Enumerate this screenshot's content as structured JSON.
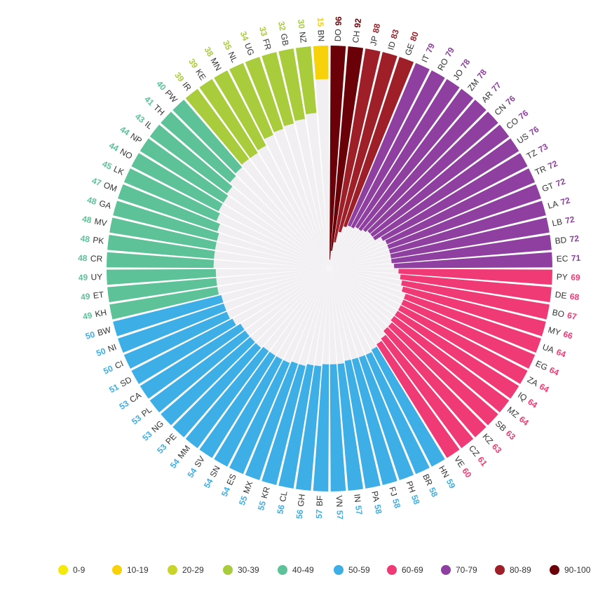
{
  "chart_data": {
    "type": "radial-bar",
    "categories": [
      "DO",
      "CH",
      "JP",
      "ID",
      "GE",
      "IT",
      "RO",
      "JO",
      "ZM",
      "AR",
      "CN",
      "CO",
      "US",
      "TZ",
      "TR",
      "GT",
      "LA",
      "LB",
      "BD",
      "EC",
      "PY",
      "DE",
      "BO",
      "MY",
      "UA",
      "EG",
      "ZA",
      "IQ",
      "MZ",
      "SB",
      "KZ",
      "CZ",
      "VE",
      "HN",
      "BR",
      "PH",
      "FJ",
      "PA",
      "IN",
      "VN",
      "BF",
      "GH",
      "CL",
      "KR",
      "MX",
      "ES",
      "SN",
      "SV",
      "MM",
      "PE",
      "NG",
      "PL",
      "CA",
      "SD",
      "CI",
      "NI",
      "BW",
      "KH",
      "ET",
      "UY",
      "CR",
      "PK",
      "MV",
      "GA",
      "OM",
      "LK",
      "NO",
      "NP",
      "IL",
      "TH",
      "PW",
      "IR",
      "KE",
      "MN",
      "NL",
      "UG",
      "FR",
      "GB",
      "NZ",
      "BN"
    ],
    "values": [
      96,
      92,
      88,
      83,
      80,
      79,
      79,
      78,
      78,
      77,
      76,
      76,
      76,
      73,
      72,
      72,
      72,
      72,
      72,
      71,
      69,
      68,
      67,
      66,
      64,
      64,
      64,
      64,
      64,
      63,
      63,
      61,
      60,
      59,
      58,
      58,
      58,
      58,
      57,
      57,
      57,
      56,
      56,
      55,
      55,
      54,
      54,
      54,
      54,
      53,
      53,
      53,
      53,
      51,
      50,
      50,
      50,
      49,
      49,
      49,
      48,
      48,
      48,
      48,
      47,
      45,
      44,
      44,
      43,
      41,
      40,
      39,
      39,
      38,
      35,
      34,
      33,
      32,
      30,
      15
    ],
    "ylim": [
      0,
      100
    ],
    "grid": false,
    "legend_position": "bottom",
    "legend": [
      {
        "label": "0-9",
        "color": "#f5e90a"
      },
      {
        "label": "10-19",
        "color": "#f7d10a"
      },
      {
        "label": "20-29",
        "color": "#c9d42a"
      },
      {
        "label": "30-39",
        "color": "#a8cc3b"
      },
      {
        "label": "40-49",
        "color": "#5ec299"
      },
      {
        "label": "50-59",
        "color": "#3daee6"
      },
      {
        "label": "60-69",
        "color": "#f03a76"
      },
      {
        "label": "70-79",
        "color": "#8e3fa0"
      },
      {
        "label": "80-89",
        "color": "#9e1f27"
      },
      {
        "label": "90-100",
        "color": "#6a0008"
      }
    ]
  }
}
